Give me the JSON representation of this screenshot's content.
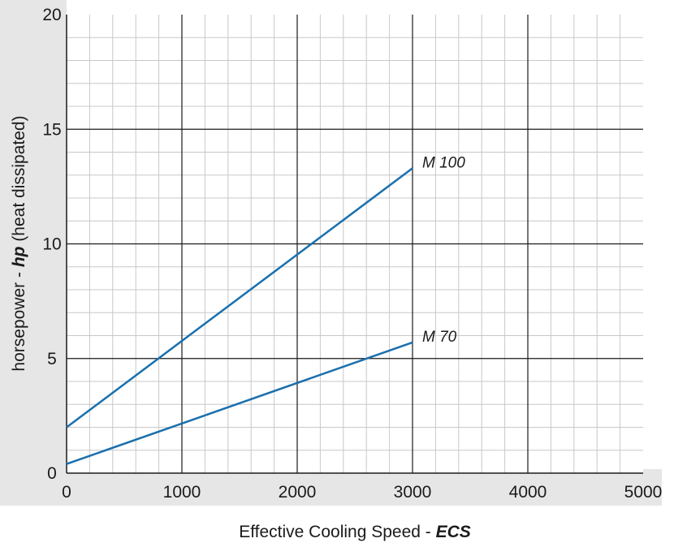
{
  "chart_data": {
    "type": "line",
    "xlabel": {
      "main": "Effective Cooling Speed  - ",
      "emph": "ECS"
    },
    "ylabel": {
      "main": "horsepower - ",
      "emph": "hp",
      "tail": "  (heat dissipated)"
    },
    "xlim": [
      0,
      5000
    ],
    "ylim": [
      0,
      20
    ],
    "x_ticks": [
      0,
      1000,
      2000,
      3000,
      4000,
      5000
    ],
    "y_ticks": [
      0,
      5,
      10,
      15,
      20
    ],
    "grid": true,
    "series": [
      {
        "name": "M 100",
        "x": [
          0,
          3000
        ],
        "y": [
          2.0,
          13.3
        ]
      },
      {
        "name": "M 70",
        "x": [
          0,
          3000
        ],
        "y": [
          0.4,
          5.7
        ]
      }
    ]
  },
  "colors": {
    "line": "#1a6fae",
    "major_grid": "#1a1a1a",
    "minor_grid": "#c8c8c8",
    "axis_band": "#e6e6e6",
    "text": "#1a1a1a"
  }
}
